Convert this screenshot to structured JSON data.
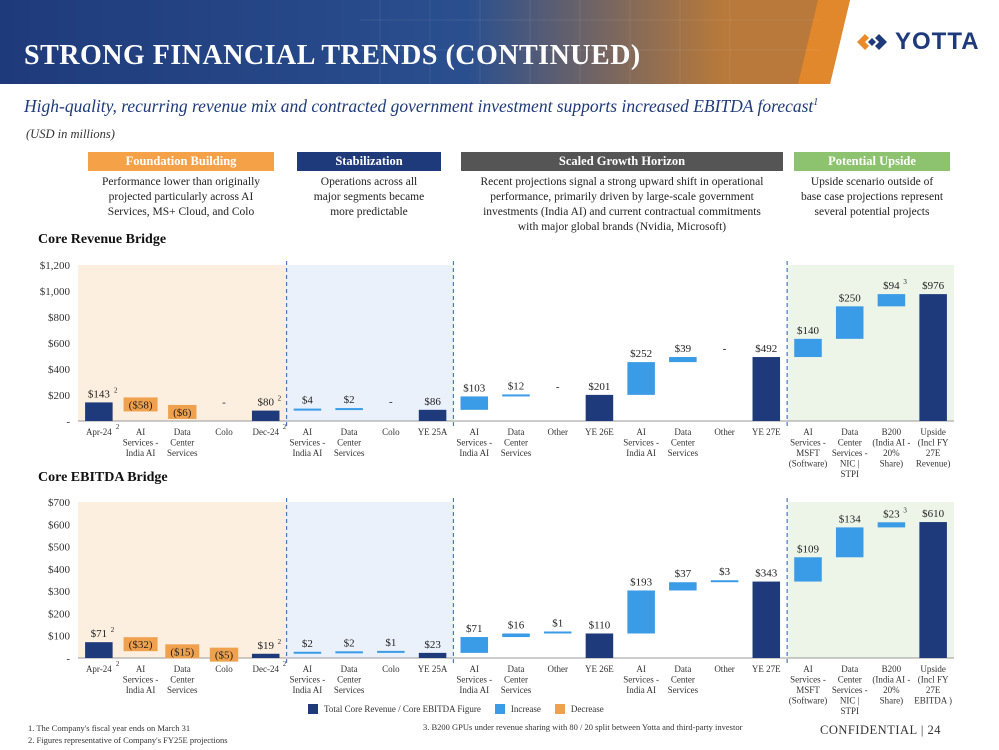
{
  "header": {
    "title": "STRONG FINANCIAL TRENDS (CONTINUED)",
    "logo_text": "YOTTA",
    "subtitle": "High-quality, recurring revenue mix and contracted government investment supports increased EBITDA forecast",
    "subtitle_sup": "1",
    "units": "(USD in millions)"
  },
  "phases": [
    {
      "label": "Foundation Building",
      "color": "#f4a148",
      "desc": [
        "Performance lower than originally",
        "projected particularly across AI",
        "Services, MS+ Cloud, and Colo"
      ]
    },
    {
      "label": "Stabilization",
      "color": "#1f3a7a",
      "desc": [
        "Operations across all",
        "major segments became",
        "more predictable"
      ]
    },
    {
      "label": "Scaled Growth Horizon",
      "color": "#555555",
      "desc": [
        "Recent projections signal a strong upward shift in operational",
        "performance, primarily driven by large-scale government",
        "investments (India AI) and current contractual commitments",
        "with major global brands (Nvidia, Microsoft)"
      ]
    },
    {
      "label": "Potential Upside",
      "color": "#8dc26f",
      "desc": [
        "Upside scenario outside of",
        "base case projections represent",
        "several potential projects"
      ]
    }
  ],
  "colors": {
    "total": "#1f3a7a",
    "increase": "#3a9be6",
    "decrease": "#f0a14e"
  },
  "chart_data": [
    {
      "type": "bar",
      "title": "Core Revenue Bridge",
      "ylim": [
        0,
        1200
      ],
      "yticks": [
        "-",
        "$200",
        "$400",
        "$600",
        "$800",
        "$1,000",
        "$1,200"
      ],
      "categories": [
        "Apr-24",
        "AI Services - India AI",
        "Data Center Services",
        "Colo",
        "Dec-24",
        "AI Services - India AI",
        "Data Center Services",
        "Colo",
        "YE 25A",
        "AI Services - India AI",
        "Data Center Services",
        "Other",
        "YE 26E",
        "AI Services - India AI",
        "Data Center Services",
        "Other",
        "YE 27E",
        "AI Services - MSFT (Software)",
        "Data Center Services - NIC | STPI",
        "B200 (India AI - 20% Share)",
        "Upside (Incl FY 27E Revenue)"
      ],
      "category_lines": [
        [
          "Apr-24"
        ],
        [
          "AI",
          "Services -",
          "India AI"
        ],
        [
          "Data",
          "Center",
          "Services"
        ],
        [
          "Colo"
        ],
        [
          "Dec-24"
        ],
        [
          "AI",
          "Services -",
          "India AI"
        ],
        [
          "Data",
          "Center",
          "Services"
        ],
        [
          "Colo"
        ],
        [
          "YE 25A"
        ],
        [
          "AI",
          "Services -",
          "India AI"
        ],
        [
          "Data",
          "Center",
          "Services"
        ],
        [
          "Other"
        ],
        [
          "YE 26E"
        ],
        [
          "AI",
          "Services -",
          "India AI"
        ],
        [
          "Data",
          "Center",
          "Services"
        ],
        [
          "Other"
        ],
        [
          "YE 27E"
        ],
        [
          "AI",
          "Services -",
          "MSFT",
          "(Software)"
        ],
        [
          "Data",
          "Center",
          "Services -",
          "NIC |",
          "STPI"
        ],
        [
          "B200",
          "(India AI -",
          "20%",
          "Share)"
        ],
        [
          "Upside",
          "(Incl FY",
          "27E",
          "Revenue)"
        ]
      ],
      "kinds": [
        "total",
        "decrease",
        "decrease",
        "none",
        "total",
        "increase",
        "increase",
        "none",
        "total",
        "increase",
        "increase",
        "none",
        "total",
        "increase",
        "increase",
        "none",
        "total",
        "increase",
        "increase",
        "increase",
        "total"
      ],
      "values": [
        143,
        -58,
        -6,
        0,
        80,
        4,
        2,
        0,
        86,
        103,
        12,
        0,
        201,
        252,
        39,
        0,
        492,
        140,
        250,
        94,
        976
      ],
      "labels": [
        "$143",
        "($58)",
        "($6)",
        "-",
        "$80",
        "$4",
        "$2",
        "-",
        "$86",
        "$103",
        "$12",
        "-",
        "$201",
        "$252",
        "$39",
        "-",
        "$492",
        "$140",
        "$250",
        "$94",
        "$976"
      ],
      "label_sups": {
        "0": "2",
        "4": "2",
        "19": "3"
      }
    },
    {
      "type": "bar",
      "title": "Core EBITDA Bridge",
      "ylim": [
        0,
        700
      ],
      "yticks": [
        "-",
        "$100",
        "$200",
        "$300",
        "$400",
        "$500",
        "$600",
        "$700"
      ],
      "categories": [
        "Apr-24",
        "AI Services - India AI",
        "Data Center Services",
        "Colo",
        "Dec-24",
        "AI Services - India AI",
        "Data Center Services",
        "Colo",
        "YE 25A",
        "AI Services - India AI",
        "Data Center Services",
        "Other",
        "YE 26E",
        "AI Services - India AI",
        "Data Center Services",
        "Other",
        "YE 27E",
        "AI Services - MSFT (Software)",
        "Data Center Services - NIC | STPI",
        "B200 (India AI - 20% Share)",
        "Upside (Incl FY 27E EBITDA)"
      ],
      "category_lines": [
        [
          "Apr-24"
        ],
        [
          "AI",
          "Services -",
          "India AI"
        ],
        [
          "Data",
          "Center",
          "Services"
        ],
        [
          "Colo"
        ],
        [
          "Dec-24"
        ],
        [
          "AI",
          "Services -",
          "India AI"
        ],
        [
          "Data",
          "Center",
          "Services"
        ],
        [
          "Colo"
        ],
        [
          "YE 25A"
        ],
        [
          "AI",
          "Services -",
          "India AI"
        ],
        [
          "Data",
          "Center",
          "Services"
        ],
        [
          "Other"
        ],
        [
          "YE 26E"
        ],
        [
          "AI",
          "Services -",
          "India AI"
        ],
        [
          "Data",
          "Center",
          "Services"
        ],
        [
          "Other"
        ],
        [
          "YE 27E"
        ],
        [
          "AI",
          "Services -",
          "MSFT",
          "(Software)"
        ],
        [
          "Data",
          "Center",
          "Services -",
          "NIC |",
          "STPI"
        ],
        [
          "B200",
          "(India AI -",
          "20%",
          "Share)"
        ],
        [
          "Upside",
          "(Incl FY",
          "27E",
          "EBITDA )"
        ]
      ],
      "kinds": [
        "total",
        "decrease",
        "decrease",
        "decrease",
        "total",
        "increase",
        "increase",
        "increase",
        "total",
        "increase",
        "increase",
        "increase",
        "total",
        "increase",
        "increase",
        "increase",
        "total",
        "increase",
        "increase",
        "increase",
        "total"
      ],
      "values": [
        71,
        -32,
        -15,
        -5,
        19,
        2,
        2,
        1,
        23,
        71,
        16,
        1,
        110,
        193,
        37,
        3,
        343,
        109,
        134,
        23,
        610
      ],
      "labels": [
        "$71",
        "($32)",
        "($15)",
        "($5)",
        "$19",
        "$2",
        "$2",
        "$1",
        "$23",
        "$71",
        "$16",
        "$1",
        "$110",
        "$193",
        "$37",
        "$3",
        "$343",
        "$109",
        "$134",
        "$23",
        "$610"
      ],
      "label_sups": {
        "0": "2",
        "4": "2",
        "19": "3"
      }
    }
  ],
  "legend": [
    {
      "label": "Total Core Revenue / Core EBITDA Figure",
      "color": "#1f3a7a"
    },
    {
      "label": "Increase",
      "color": "#3a9be6"
    },
    {
      "label": "Decrease",
      "color": "#f0a14e"
    }
  ],
  "footnotes": [
    "1.   The Company's fiscal year ends on March 31",
    "2.   Figures representative of Company's FY25E projections"
  ],
  "footnote3": "3.   B200 GPUs under revenue sharing with 80 / 20 split between Yotta and third-party investor",
  "confidential": "CONFIDENTIAL | 24"
}
